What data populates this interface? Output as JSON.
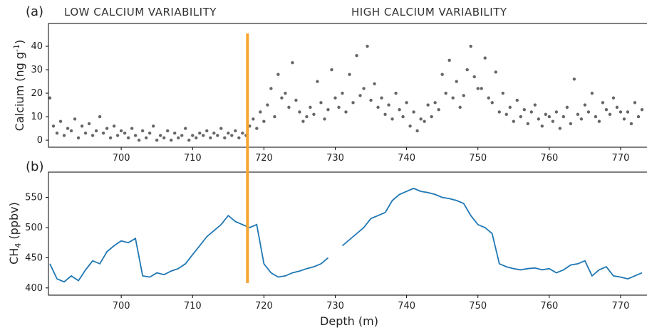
{
  "chart_data": [
    {
      "type": "scatter",
      "panel_label": "(a)",
      "annotations": [
        "LOW CALCIUM VARIABILITY",
        "HIGH CALCIUM VARIABILITY"
      ],
      "ylabel": {
        "text": "Calcium (ng g",
        "sup": "-1",
        "tail": ")"
      },
      "color": "#000000",
      "vline_x": 717.7,
      "vline_color": "#f7a531",
      "xlim": [
        689.8,
        773.7
      ],
      "xticks": [
        700,
        710,
        720,
        730,
        740,
        750,
        760,
        770
      ],
      "ylim": [
        -3,
        49.7
      ],
      "yticks": [
        0,
        10,
        20,
        30,
        40
      ],
      "x": [
        690,
        690.5,
        691,
        691.5,
        692,
        692.5,
        693,
        693.5,
        694,
        694.5,
        695,
        695.5,
        696,
        696.5,
        697,
        697.5,
        698,
        698.5,
        699,
        699.5,
        700,
        700.5,
        701,
        701.5,
        702,
        702.5,
        703,
        703.5,
        704,
        704.5,
        705,
        705.5,
        706,
        706.5,
        707,
        707.5,
        708,
        708.5,
        709,
        709.5,
        710,
        710.5,
        711,
        711.5,
        712,
        712.5,
        713,
        713.5,
        714,
        714.5,
        715,
        715.5,
        716,
        716.5,
        717,
        717.5,
        718,
        718.5,
        719,
        719.5,
        720,
        720.5,
        721,
        721.5,
        722,
        722.5,
        723,
        723.5,
        724,
        724.5,
        725,
        725.5,
        726,
        726.5,
        727,
        727.5,
        728,
        728.5,
        729,
        729.5,
        730,
        730.5,
        731,
        731.5,
        732,
        732.5,
        733,
        733.5,
        734,
        734.5,
        735,
        735.5,
        736,
        736.5,
        737,
        737.5,
        738,
        738.5,
        739,
        739.5,
        740,
        740.5,
        741,
        741.5,
        742,
        742.5,
        743,
        743.5,
        744,
        744.5,
        745,
        745.5,
        746,
        746.5,
        747,
        747.5,
        748,
        748.5,
        749,
        749.5,
        750,
        750.5,
        751,
        751.5,
        752,
        752.5,
        753,
        753.5,
        754,
        754.5,
        755,
        755.5,
        756,
        756.5,
        757,
        757.5,
        758,
        758.5,
        759,
        759.5,
        760,
        760.5,
        761,
        761.5,
        762,
        762.5,
        763,
        763.5,
        764,
        764.5,
        765,
        765.5,
        766,
        766.5,
        767,
        767.5,
        768,
        768.5,
        769,
        769.5,
        770,
        770.5,
        771,
        771.5,
        772,
        772.5,
        773
      ],
      "values": [
        18,
        6,
        3,
        8,
        2,
        5,
        4,
        9,
        1,
        6,
        3,
        7,
        2,
        4,
        10,
        3,
        5,
        1,
        6,
        2,
        4,
        3,
        1,
        5,
        2,
        0,
        4,
        1,
        3,
        6,
        0,
        2,
        1,
        4,
        0,
        3,
        1,
        2,
        5,
        0,
        2,
        1,
        3,
        2,
        4,
        1,
        3,
        2,
        5,
        1,
        3,
        2,
        4,
        1,
        3,
        2,
        6,
        9,
        5,
        12,
        8,
        15,
        22,
        10,
        28,
        18,
        20,
        14,
        33,
        17,
        12,
        8,
        10,
        14,
        11,
        25,
        16,
        9,
        13,
        30,
        18,
        14,
        20,
        12,
        28,
        16,
        36,
        19,
        22,
        40,
        17,
        24,
        14,
        18,
        11,
        15,
        9,
        20,
        13,
        10,
        16,
        6,
        12,
        4,
        9,
        8,
        15,
        10,
        16,
        13,
        28,
        20,
        34,
        18,
        25,
        14,
        19,
        30,
        40,
        27,
        22,
        22,
        35,
        18,
        16,
        29,
        12,
        20,
        11,
        14,
        8,
        17,
        10,
        13,
        7,
        12,
        15,
        9,
        6,
        11,
        10,
        8,
        12,
        5,
        10,
        14,
        7,
        26,
        11,
        9,
        15,
        12,
        20,
        10,
        8,
        16,
        13,
        11,
        18,
        14,
        12,
        9,
        12,
        7,
        16,
        10,
        13
      ]
    },
    {
      "type": "line",
      "panel_label": "(b)",
      "xlabel": "Depth (m)",
      "ylabel": {
        "text": "CH",
        "sub": "4",
        "tail": " (ppbv)"
      },
      "color": "#1f77b4",
      "xlim": [
        689.8,
        773.7
      ],
      "xticks": [
        700,
        710,
        720,
        730,
        740,
        750,
        760,
        770
      ],
      "ylim": [
        388,
        592
      ],
      "yticks": [
        400,
        450,
        500,
        550
      ],
      "x": [
        690,
        691,
        692,
        693,
        694,
        695,
        696,
        697,
        698,
        699,
        700,
        701,
        702,
        703,
        704,
        705,
        706,
        707,
        708,
        709,
        710,
        711,
        712,
        713,
        714,
        715,
        716,
        717,
        718,
        719,
        720,
        721,
        722,
        723,
        724,
        725,
        726,
        727,
        728,
        729,
        730,
        731,
        732,
        733,
        734,
        735,
        736,
        737,
        738,
        739,
        740,
        741,
        742,
        743,
        744,
        745,
        746,
        747,
        748,
        749,
        750,
        751,
        752,
        753,
        754,
        755,
        756,
        757,
        758,
        759,
        760,
        761,
        762,
        763,
        764,
        765,
        766,
        767,
        768,
        769,
        770,
        771,
        772,
        773
      ],
      "values": [
        440,
        415,
        410,
        420,
        412,
        430,
        445,
        440,
        460,
        470,
        478,
        475,
        482,
        420,
        418,
        425,
        422,
        428,
        432,
        440,
        455,
        470,
        485,
        495,
        505,
        520,
        510,
        505,
        500,
        505,
        440,
        425,
        418,
        420,
        425,
        428,
        432,
        435,
        440,
        450,
        null,
        470,
        480,
        490,
        500,
        515,
        520,
        525,
        545,
        555,
        560,
        565,
        560,
        558,
        555,
        550,
        548,
        545,
        540,
        520,
        505,
        500,
        490,
        440,
        435,
        432,
        430,
        432,
        433,
        430,
        432,
        425,
        430,
        438,
        440,
        445,
        420,
        430,
        435,
        420,
        418,
        415,
        420,
        425
      ]
    }
  ]
}
